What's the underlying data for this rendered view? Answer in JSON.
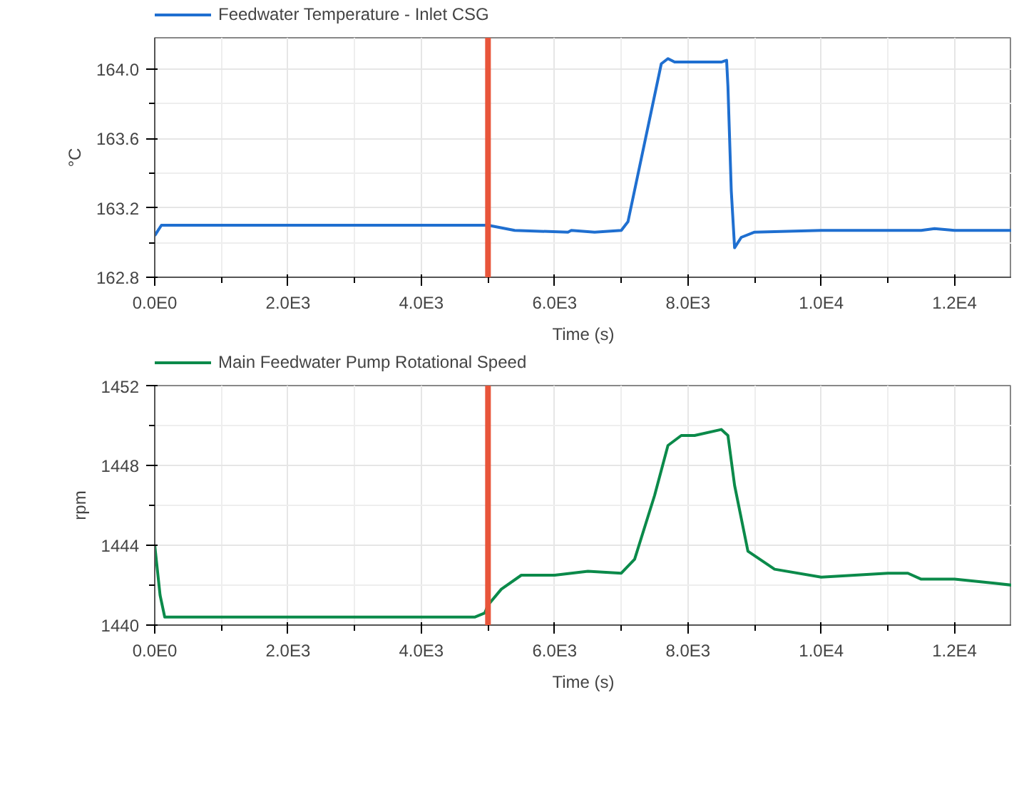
{
  "chart_data": [
    {
      "type": "line",
      "xlabel": "Time (s)",
      "ylabel": "°C",
      "legend": "top left",
      "grid": true,
      "marker": "none",
      "line_style": "solid",
      "xlim": [
        0,
        12860
      ],
      "ylim": [
        162.8,
        164.18
      ],
      "xticks": [
        {
          "value": 0,
          "label": "0.0E0"
        },
        {
          "value": 1000,
          "label": null
        },
        {
          "value": 2000,
          "label": "2.0E3"
        },
        {
          "value": 3000,
          "label": null
        },
        {
          "value": 4000,
          "label": "4.0E3"
        },
        {
          "value": 5000,
          "label": null
        },
        {
          "value": 6000,
          "label": "6.0E3"
        },
        {
          "value": 7000,
          "label": null
        },
        {
          "value": 8000,
          "label": "8.0E3"
        },
        {
          "value": 9000,
          "label": null
        },
        {
          "value": 10000,
          "label": "1.0E4"
        },
        {
          "value": 11000,
          "label": null
        },
        {
          "value": 12000,
          "label": "1.2E4"
        }
      ],
      "yticks": [
        {
          "value": 162.8,
          "label": "162.8"
        },
        {
          "value": 163.0,
          "label": null
        },
        {
          "value": 163.2,
          "label": "163.2"
        },
        {
          "value": 163.4,
          "label": null
        },
        {
          "value": 163.6,
          "label": "163.6"
        },
        {
          "value": 163.8,
          "label": null
        },
        {
          "value": 164.0,
          "label": "164.0"
        }
      ],
      "ref_lines": [
        {
          "axis": "x",
          "value": 5000,
          "color": "#e8553a"
        }
      ],
      "series": [
        {
          "name": "Feedwater Temperature - Inlet CSG",
          "color": "#1f6fd0",
          "x": [
            0,
            100,
            5000,
            5400,
            6200,
            6250,
            6600,
            7000,
            7100,
            7600,
            7700,
            7800,
            8500,
            8580,
            8600,
            8650,
            8700,
            8800,
            9000,
            10000,
            11500,
            11700,
            12000,
            12200,
            12860
          ],
          "values": [
            163.04,
            163.1,
            163.1,
            163.07,
            163.06,
            163.07,
            163.06,
            163.07,
            163.12,
            164.03,
            164.06,
            164.04,
            164.04,
            164.05,
            163.9,
            163.3,
            162.97,
            163.03,
            163.06,
            163.07,
            163.07,
            163.08,
            163.07,
            163.07,
            163.07
          ]
        }
      ]
    },
    {
      "type": "line",
      "xlabel": "Time (s)",
      "ylabel": "rpm",
      "legend": "top left",
      "grid": true,
      "marker": "none",
      "line_style": "solid",
      "xlim": [
        0,
        12860
      ],
      "ylim": [
        1440,
        1452
      ],
      "xticks": [
        {
          "value": 0,
          "label": "0.0E0"
        },
        {
          "value": 1000,
          "label": null
        },
        {
          "value": 2000,
          "label": "2.0E3"
        },
        {
          "value": 3000,
          "label": null
        },
        {
          "value": 4000,
          "label": "4.0E3"
        },
        {
          "value": 5000,
          "label": null
        },
        {
          "value": 6000,
          "label": "6.0E3"
        },
        {
          "value": 7000,
          "label": null
        },
        {
          "value": 8000,
          "label": "8.0E3"
        },
        {
          "value": 9000,
          "label": null
        },
        {
          "value": 10000,
          "label": "1.0E4"
        },
        {
          "value": 11000,
          "label": null
        },
        {
          "value": 12000,
          "label": "1.2E4"
        }
      ],
      "yticks": [
        1440,
        {
          "value": 1442,
          "label": null
        },
        1444,
        {
          "value": 1446,
          "label": null
        },
        1448,
        {
          "value": 1450,
          "label": null
        },
        1452
      ],
      "ref_lines": [
        {
          "axis": "x",
          "value": 5000,
          "color": "#e8553a"
        }
      ],
      "series": [
        {
          "name": "Main Feedwater Pump Rotational Speed",
          "color": "#0b8a4a",
          "x": [
            0,
            80,
            150,
            4800,
            4950,
            5000,
            5200,
            5500,
            6000,
            6500,
            7000,
            7200,
            7500,
            7700,
            7900,
            8100,
            8500,
            8600,
            8700,
            8900,
            9300,
            10000,
            11000,
            11300,
            11500,
            12000,
            12600,
            12860
          ],
          "values": [
            1444.0,
            1441.5,
            1440.4,
            1440.4,
            1440.6,
            1441.0,
            1441.8,
            1442.5,
            1442.5,
            1442.7,
            1442.6,
            1443.3,
            1446.5,
            1449.0,
            1449.5,
            1449.5,
            1449.8,
            1449.5,
            1447.0,
            1443.7,
            1442.8,
            1442.4,
            1442.6,
            1442.6,
            1442.3,
            1442.3,
            1442.1,
            1442.0
          ]
        }
      ]
    }
  ]
}
